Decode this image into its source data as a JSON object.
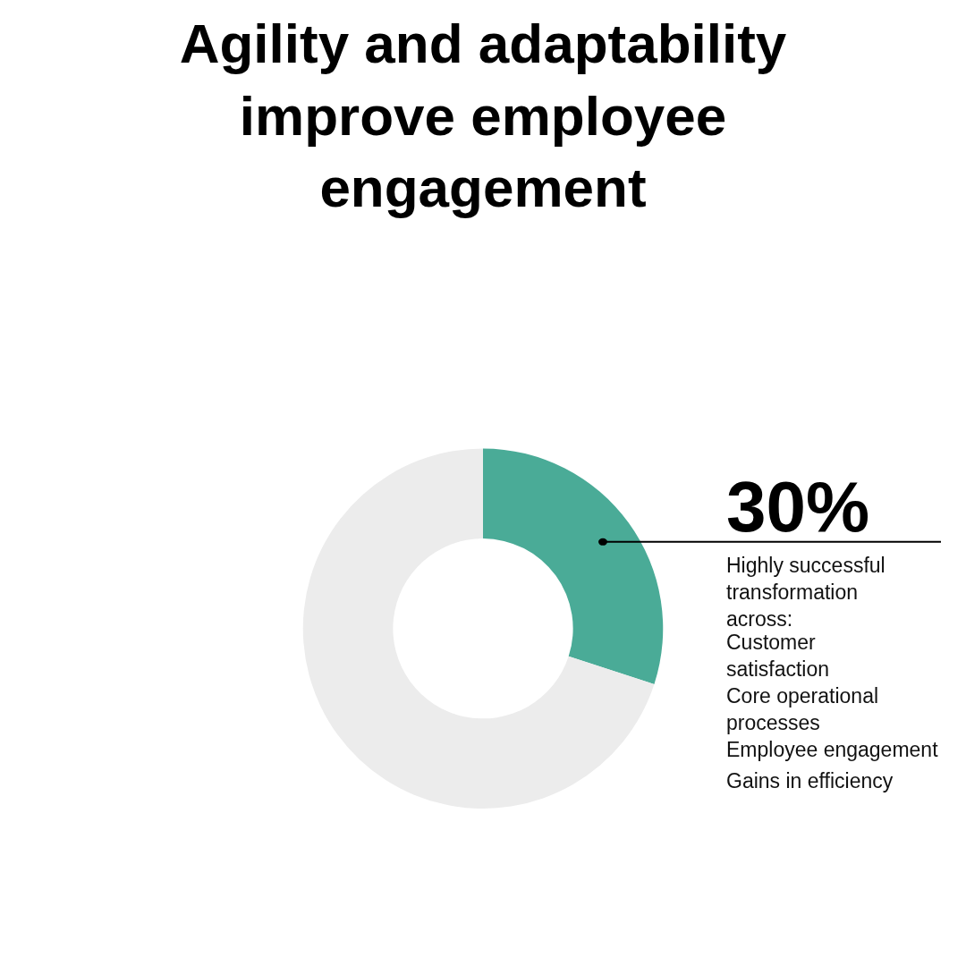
{
  "chart_data": {
    "type": "donut",
    "title": "Agility and adaptability improve employee engagement",
    "categories": [
      null,
      null
    ],
    "values": [
      30,
      70
    ],
    "colors": [
      "#4aab97",
      "#ececec"
    ],
    "value_labels": [
      "30%",
      null
    ],
    "annotations": [
      "Highly successful transformation across:",
      "Customer satisfaction",
      "Core operational processes",
      "Employee engagement",
      "Gains in efficiency"
    ],
    "legend": false
  }
}
